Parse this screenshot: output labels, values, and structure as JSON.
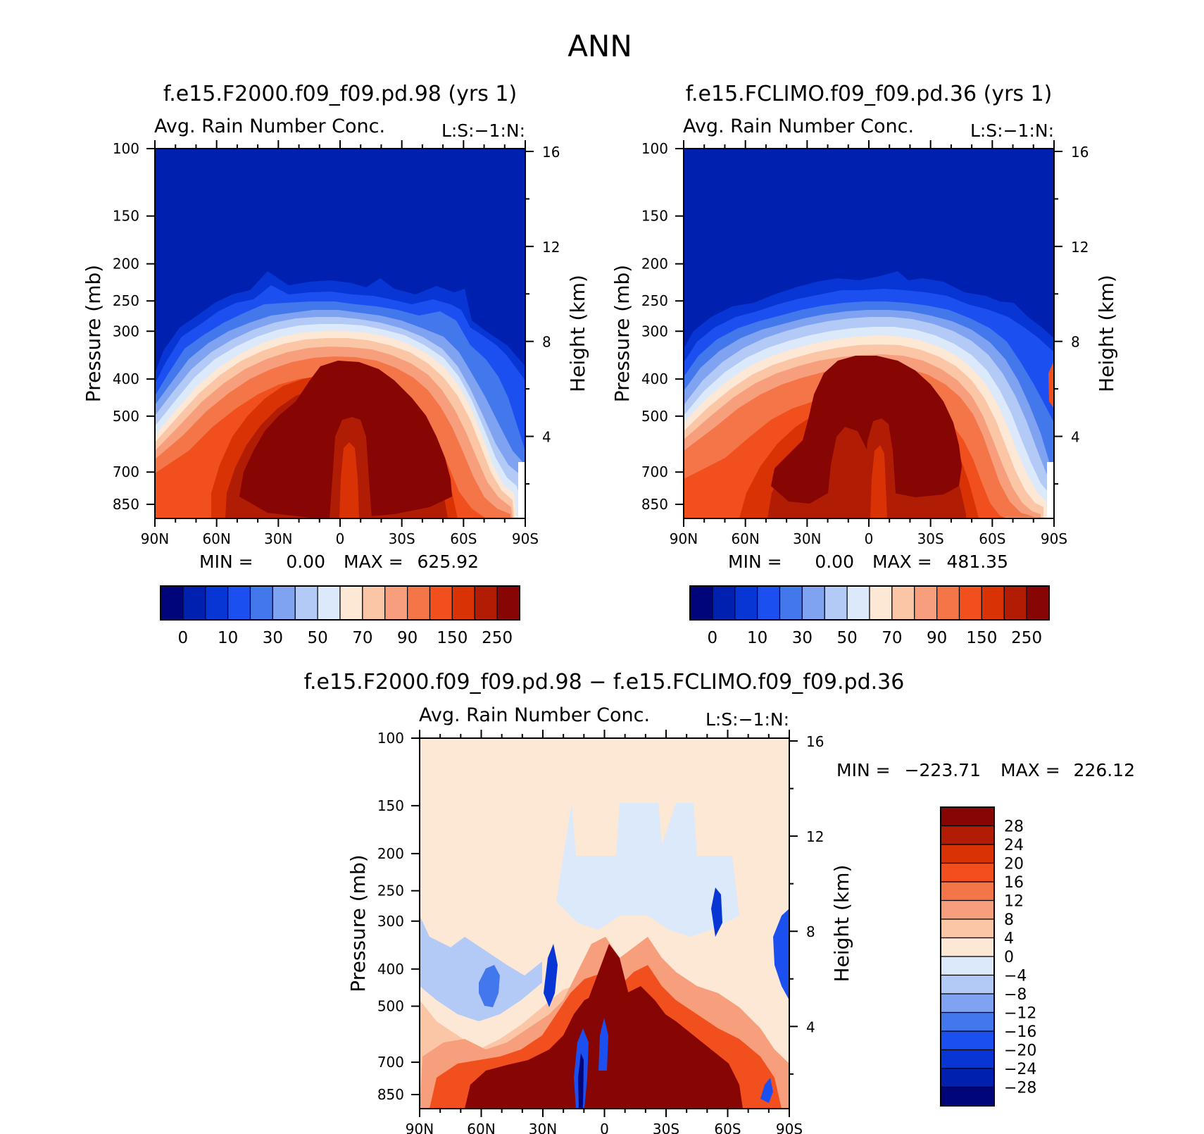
{
  "figure_title": "ANN",
  "chart_data": [
    {
      "type": "contour",
      "title": "f.e15.F2000.f09_f09.pd.98 (yrs 1)",
      "subtitle": "Avg. Rain Number Conc.",
      "right_subtitle": "L:S:−1:N:",
      "ylabel": "Pressure (mb)",
      "y2label": "Height (km)",
      "x_ticks": [
        "90N",
        "60N",
        "30N",
        "0",
        "30S",
        "60S",
        "90S"
      ],
      "y_ticks": [
        "100",
        "150",
        "200",
        "250",
        "300",
        "400",
        "500",
        "700",
        "850"
      ],
      "y2_ticks": [
        "16",
        "12",
        "8",
        "4"
      ],
      "min_label": "MIN =",
      "min_value": "0.00",
      "max_label": "MAX =",
      "max_value": "625.92",
      "colorbar_labels": [
        "0",
        "10",
        "30",
        "50",
        "70",
        "90",
        "150",
        "250"
      ],
      "colors": [
        "#00057a",
        "#0021b0",
        "#0736d4",
        "#1c4ff0",
        "#4377ec",
        "#7fa3f0",
        "#b3c9f6",
        "#dbe9fb",
        "#fde7d5",
        "#fbc6a6",
        "#f79f7c",
        "#f47648",
        "#f14f1e",
        "#d93305",
        "#b01c04",
        "#870502"
      ]
    },
    {
      "type": "contour",
      "title": "f.e15.FCLIMO.f09_f09.pd.36 (yrs 1)",
      "subtitle": "Avg. Rain Number Conc.",
      "right_subtitle": "L:S:−1:N:",
      "ylabel": "Pressure (mb)",
      "y2label": "Height (km)",
      "x_ticks": [
        "90N",
        "60N",
        "30N",
        "0",
        "30S",
        "60S",
        "90S"
      ],
      "y_ticks": [
        "100",
        "150",
        "200",
        "250",
        "300",
        "400",
        "500",
        "700",
        "850"
      ],
      "y2_ticks": [
        "16",
        "12",
        "8",
        "4"
      ],
      "min_label": "MIN =",
      "min_value": "0.00",
      "max_label": "MAX =",
      "max_value": "481.35",
      "colorbar_labels": [
        "0",
        "10",
        "30",
        "50",
        "70",
        "90",
        "150",
        "250"
      ],
      "colors": [
        "#00057a",
        "#0021b0",
        "#0736d4",
        "#1c4ff0",
        "#4377ec",
        "#7fa3f0",
        "#b3c9f6",
        "#dbe9fb",
        "#fde7d5",
        "#fbc6a6",
        "#f79f7c",
        "#f47648",
        "#f14f1e",
        "#d93305",
        "#b01c04",
        "#870502"
      ]
    },
    {
      "type": "contour",
      "title": "f.e15.F2000.f09_f09.pd.98 − f.e15.FCLIMO.f09_f09.pd.36",
      "subtitle": "Avg. Rain Number Conc.",
      "right_subtitle": "L:S:−1:N:",
      "ylabel": "Pressure (mb)",
      "y2label": "Height (km)",
      "x_ticks": [
        "90N",
        "60N",
        "30N",
        "0",
        "30S",
        "60S",
        "90S"
      ],
      "y_ticks": [
        "100",
        "150",
        "200",
        "250",
        "300",
        "400",
        "500",
        "700",
        "850"
      ],
      "y2_ticks": [
        "16",
        "12",
        "8",
        "4"
      ],
      "min_label": "MIN =",
      "min_value": "−223.71",
      "max_label": "MAX =",
      "max_value": "226.12",
      "colorbar_labels": [
        "28",
        "24",
        "20",
        "16",
        "12",
        "8",
        "4",
        "0",
        "−4",
        "−8",
        "−12",
        "−16",
        "−20",
        "−24",
        "−28"
      ],
      "colors": [
        "#870502",
        "#b01c04",
        "#d93305",
        "#f14f1e",
        "#f47648",
        "#f79f7c",
        "#fbc6a6",
        "#fde7d5",
        "#dbe9fb",
        "#b3c9f6",
        "#7fa3f0",
        "#4377ec",
        "#1c4ff0",
        "#0736d4",
        "#0021b0",
        "#00057a"
      ]
    }
  ]
}
